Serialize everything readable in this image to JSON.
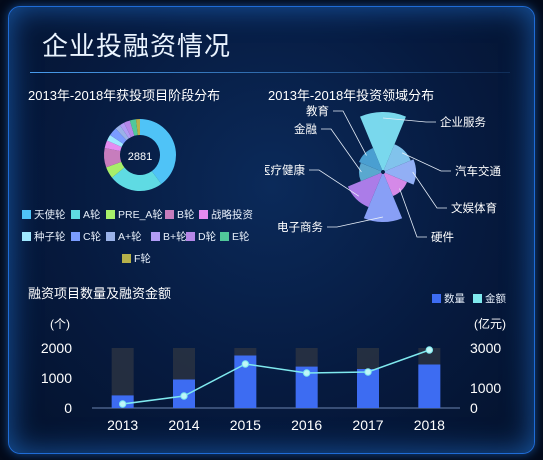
{
  "page": {
    "title": "企业投融资情况"
  },
  "stage_chart": {
    "title": "2013年-2018年获投项目阶段分布",
    "center_label": "2881"
  },
  "field_chart": {
    "title": "2013年-2018年投资领域分布"
  },
  "bar_chart": {
    "title": "融资项目数量及融资金额",
    "left_unit": "(个)",
    "right_unit": "(亿元)"
  },
  "colors": {
    "accent": "#5fd3ff",
    "bar": "#3d6cf2",
    "bar_bg": "#2a3242",
    "line": "#7fe9ee"
  },
  "chart_data": [
    {
      "type": "pie",
      "subtype": "donut",
      "title": "2013年-2018年获投项目阶段分布",
      "center_text": "2881",
      "slices": [
        {
          "name": "天使轮",
          "value": 1150,
          "color": "#4fc3f7"
        },
        {
          "name": "A轮",
          "value": 700,
          "color": "#5fdbe3"
        },
        {
          "name": "PRE_A轮",
          "value": 150,
          "color": "#a7ef6a"
        },
        {
          "name": "B轮",
          "value": 250,
          "color": "#c77dbd"
        },
        {
          "name": "战略投资",
          "value": 100,
          "color": "#e58bf0"
        },
        {
          "name": "种子轮",
          "value": 80,
          "color": "#9fe8ff"
        },
        {
          "name": "C轮",
          "value": 110,
          "color": "#7a9cff"
        },
        {
          "name": "A+轮",
          "value": 70,
          "color": "#9ab2e8"
        },
        {
          "name": "B+轮",
          "value": 60,
          "color": "#b19cf5"
        },
        {
          "name": "D轮",
          "value": 80,
          "color": "#b687e8"
        },
        {
          "name": "E轮",
          "value": 80,
          "color": "#50c89a"
        },
        {
          "name": "F轮",
          "value": 51,
          "color": "#b6b14a"
        }
      ],
      "legend_placement": "bottom"
    },
    {
      "type": "pie",
      "subtype": "rose",
      "title": "2013年-2018年投资领域分布",
      "slices": [
        {
          "name": "企业服务",
          "value": 52,
          "color": "#7fe3f5"
        },
        {
          "name": "汽车交通",
          "value": 22,
          "color": "#88ccf6"
        },
        {
          "name": "文娱体育",
          "value": 25,
          "color": "#9ab7ff"
        },
        {
          "name": "硬件",
          "value": 18,
          "color": "#e08ff0"
        },
        {
          "name": "电子商务",
          "value": 42,
          "color": "#8fa6ff"
        },
        {
          "name": "医疗健康",
          "value": 30,
          "color": "#b482f0"
        },
        {
          "name": "金融",
          "value": 16,
          "color": "#5fb0d6"
        },
        {
          "name": "教育",
          "value": 18,
          "color": "#4ea7d8"
        }
      ]
    },
    {
      "type": "bar",
      "title": "融资项目数量及融资金额",
      "categories": [
        "2013",
        "2014",
        "2015",
        "2016",
        "2017",
        "2018"
      ],
      "series": [
        {
          "name": "数量",
          "type": "bar",
          "axis": "left",
          "values": [
            420,
            950,
            1750,
            1380,
            1300,
            1450
          ]
        },
        {
          "name": "金额",
          "type": "line",
          "axis": "right",
          "values": [
            200,
            600,
            2200,
            1750,
            1800,
            2900
          ]
        }
      ],
      "ylabel_left": "(个)",
      "ylabel_right": "(亿元)",
      "ylim_left": [
        0,
        2000
      ],
      "yticks_left": [
        0,
        1000,
        2000
      ],
      "ylim_right": [
        0,
        3000
      ],
      "yticks_right": [
        0,
        1000,
        3000
      ],
      "legend_placement": "top-right"
    }
  ]
}
